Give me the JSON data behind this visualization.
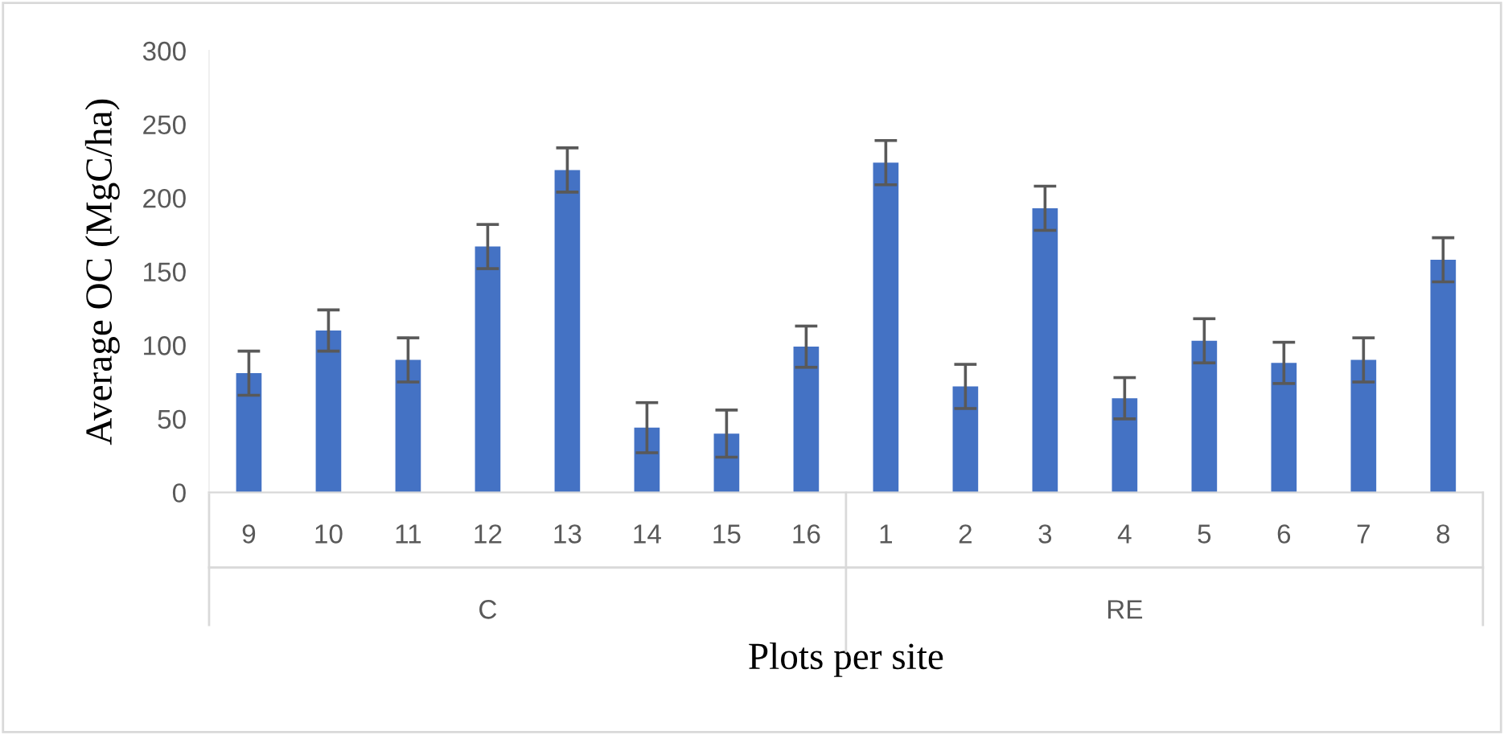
{
  "chart_data": {
    "type": "bar",
    "categories": [
      "9",
      "10",
      "11",
      "12",
      "13",
      "14",
      "15",
      "16",
      "1",
      "2",
      "3",
      "4",
      "5",
      "6",
      "7",
      "8"
    ],
    "values": [
      81,
      110,
      90,
      167,
      219,
      44,
      40,
      99,
      224,
      72,
      193,
      64,
      103,
      88,
      90,
      158
    ],
    "errors": [
      15,
      14,
      15,
      15,
      15,
      17,
      16,
      14,
      15,
      15,
      15,
      14,
      15,
      14,
      15,
      15
    ],
    "color": "#4472c4",
    "ylim": [
      0,
      300
    ],
    "yticks": [
      0,
      50,
      100,
      150,
      200,
      250,
      300
    ],
    "xlabel": "Plots per site",
    "ylabel": "Average OC (MgC/ha)",
    "annotations": [
      "C",
      "RE"
    ],
    "grid": false,
    "legend": false
  }
}
